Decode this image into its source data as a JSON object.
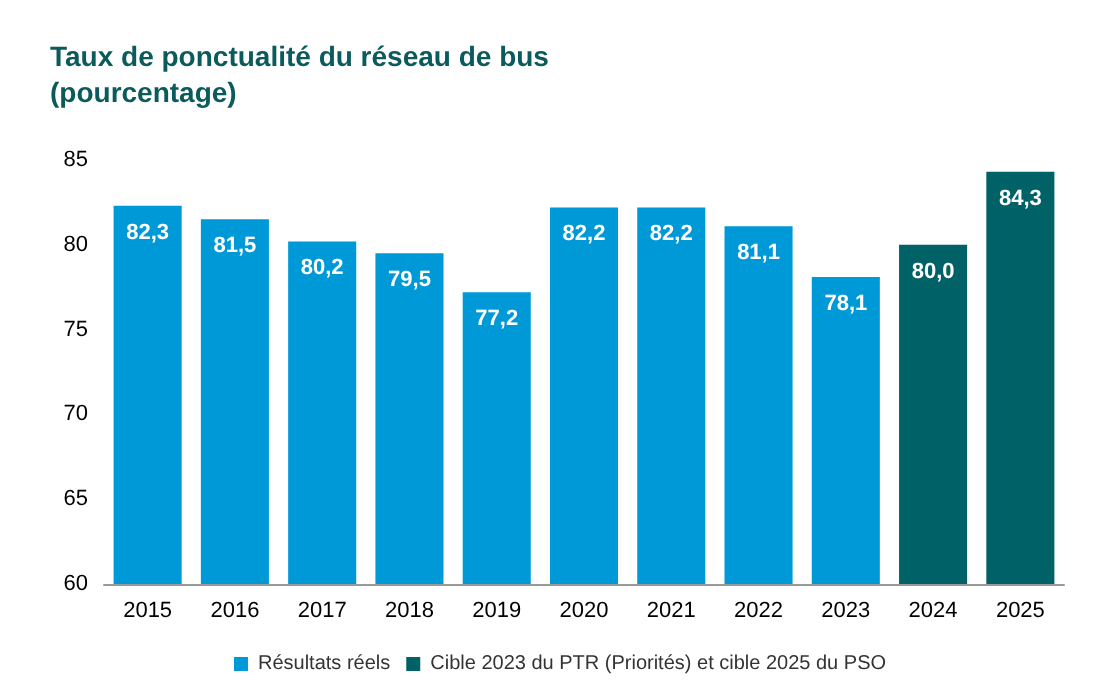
{
  "chart_data": {
    "type": "bar",
    "title": "Taux de ponctualité du réseau de bus\n(pourcentage)",
    "categories": [
      "2015",
      "2016",
      "2017",
      "2018",
      "2019",
      "2020",
      "2021",
      "2022",
      "2023",
      "2024",
      "2025"
    ],
    "series": [
      {
        "name": "Résultats réels",
        "color": "#0099d8",
        "values": [
          82.3,
          81.5,
          80.2,
          79.5,
          77.2,
          82.2,
          82.2,
          81.1,
          78.1,
          null,
          null
        ],
        "value_labels": [
          "82,3",
          "81,5",
          "80,2",
          "79,5",
          "77,2",
          "82,2",
          "82,2",
          "81,1",
          "78,1",
          null,
          null
        ]
      },
      {
        "name": "Cible 2023 du PTR (Priorités) et cible 2025 du PSO",
        "color": "#006266",
        "values": [
          null,
          null,
          null,
          null,
          null,
          null,
          null,
          null,
          null,
          80.0,
          84.3
        ],
        "value_labels": [
          null,
          null,
          null,
          null,
          null,
          null,
          null,
          null,
          null,
          "80,0",
          "84,3"
        ]
      }
    ],
    "ylim": [
      60,
      85
    ],
    "yticks": [
      60,
      65,
      70,
      75,
      80,
      85
    ],
    "grid": false,
    "legend": "bottom"
  }
}
